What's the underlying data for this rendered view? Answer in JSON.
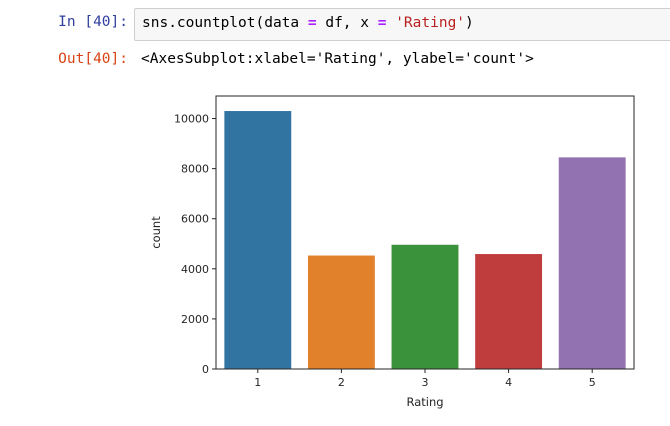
{
  "cell": {
    "in_prompt": "In [40]:",
    "out_prompt": "Out[40]:",
    "code": {
      "t1": "sns.countplot(data ",
      "op1": "=",
      "t2": " df, x ",
      "op2": "=",
      "t3": " ",
      "str1": "'Rating'",
      "t4": ")"
    },
    "output_text": "<AxesSubplot:xlabel='Rating', ylabel='count'>"
  },
  "chart_data": {
    "type": "bar",
    "categories": [
      "1",
      "2",
      "3",
      "4",
      "5"
    ],
    "values": [
      10300,
      4530,
      4960,
      4590,
      8450
    ],
    "colors": [
      "#3274a1",
      "#e1812c",
      "#3a923a",
      "#c03d3e",
      "#9372b2"
    ],
    "xlabel": "Rating",
    "ylabel": "count",
    "ylim": [
      0,
      10900
    ],
    "yticks": [
      0,
      2000,
      4000,
      6000,
      8000,
      10000
    ],
    "ytick_labels": [
      "0",
      "2000",
      "4000",
      "6000",
      "8000",
      "10000"
    ]
  }
}
